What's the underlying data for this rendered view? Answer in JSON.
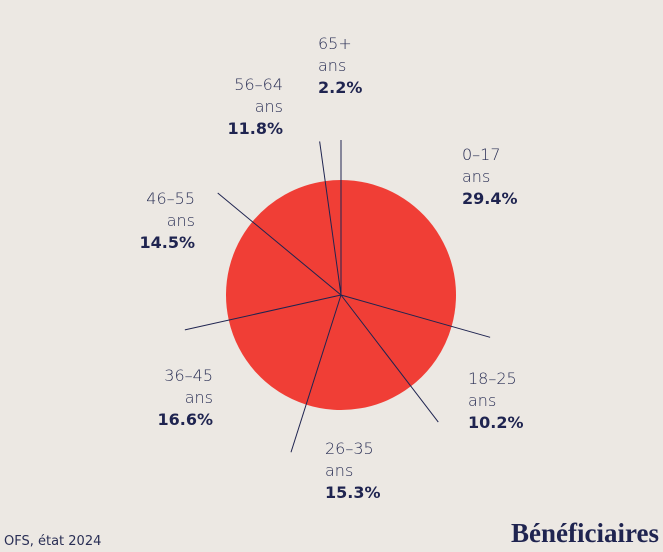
{
  "chart_data": {
    "type": "pie",
    "title": "Bénéficiaires",
    "source": "OFS, état 2024",
    "categories": [
      "0–17 ans",
      "18–25 ans",
      "26–35 ans",
      "36–45 ans",
      "46–55 ans",
      "56–64 ans",
      "65+ ans"
    ],
    "values": [
      29.4,
      10.2,
      15.3,
      16.6,
      14.5,
      11.8,
      2.2
    ],
    "value_labels": [
      "29.4%",
      "10.2%",
      "15.3%",
      "16.6%",
      "14.5%",
      "11.8%",
      "2.2%"
    ],
    "color": "#f03e36"
  }
}
